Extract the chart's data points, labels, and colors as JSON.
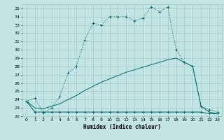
{
  "bg_color": "#c2e4e4",
  "grid_color": "#a0c8c8",
  "line_color": "#006666",
  "xlabel": "Humidex (Indice chaleur)",
  "xlim": [
    -0.5,
    23.5
  ],
  "ylim": [
    22,
    35.5
  ],
  "yticks": [
    22,
    23,
    24,
    25,
    26,
    27,
    28,
    29,
    30,
    31,
    32,
    33,
    34,
    35
  ],
  "xticks": [
    0,
    1,
    2,
    3,
    4,
    5,
    6,
    7,
    8,
    9,
    10,
    11,
    12,
    13,
    14,
    15,
    16,
    17,
    18,
    19,
    20,
    21,
    22,
    23
  ],
  "line1_x": [
    0,
    1,
    2,
    3,
    4,
    5,
    6,
    7,
    8,
    9,
    10,
    11,
    12,
    13,
    14,
    15,
    16,
    17,
    18,
    19,
    20,
    21,
    22,
    23
  ],
  "line1_y": [
    23.8,
    24.2,
    22.4,
    23.0,
    24.4,
    27.2,
    28.0,
    31.2,
    33.2,
    33.0,
    34.0,
    34.0,
    34.0,
    33.5,
    33.8,
    35.2,
    34.6,
    35.2,
    30.0,
    28.5,
    28.0,
    23.2,
    22.8,
    22.5
  ],
  "line2_x": [
    0,
    1,
    2,
    3,
    4,
    5,
    6,
    7,
    8,
    9,
    10,
    11,
    12,
    13,
    14,
    15,
    16,
    17,
    18,
    19,
    20,
    21,
    22,
    23
  ],
  "line2_y": [
    23.8,
    22.5,
    22.5,
    22.5,
    22.5,
    22.5,
    22.5,
    22.5,
    22.5,
    22.5,
    22.5,
    22.5,
    22.5,
    22.5,
    22.5,
    22.5,
    22.5,
    22.5,
    22.5,
    22.5,
    22.5,
    22.5,
    22.3,
    22.3
  ],
  "line3_x": [
    0,
    1,
    2,
    3,
    4,
    5,
    6,
    7,
    8,
    9,
    10,
    11,
    12,
    13,
    14,
    15,
    16,
    17,
    18,
    19,
    20,
    21,
    22,
    23
  ],
  "line3_y": [
    23.8,
    23.0,
    22.9,
    23.2,
    23.5,
    24.0,
    24.5,
    25.1,
    25.6,
    26.1,
    26.5,
    26.9,
    27.3,
    27.6,
    27.9,
    28.2,
    28.5,
    28.8,
    29.0,
    28.5,
    28.0,
    23.2,
    22.5,
    22.3
  ]
}
